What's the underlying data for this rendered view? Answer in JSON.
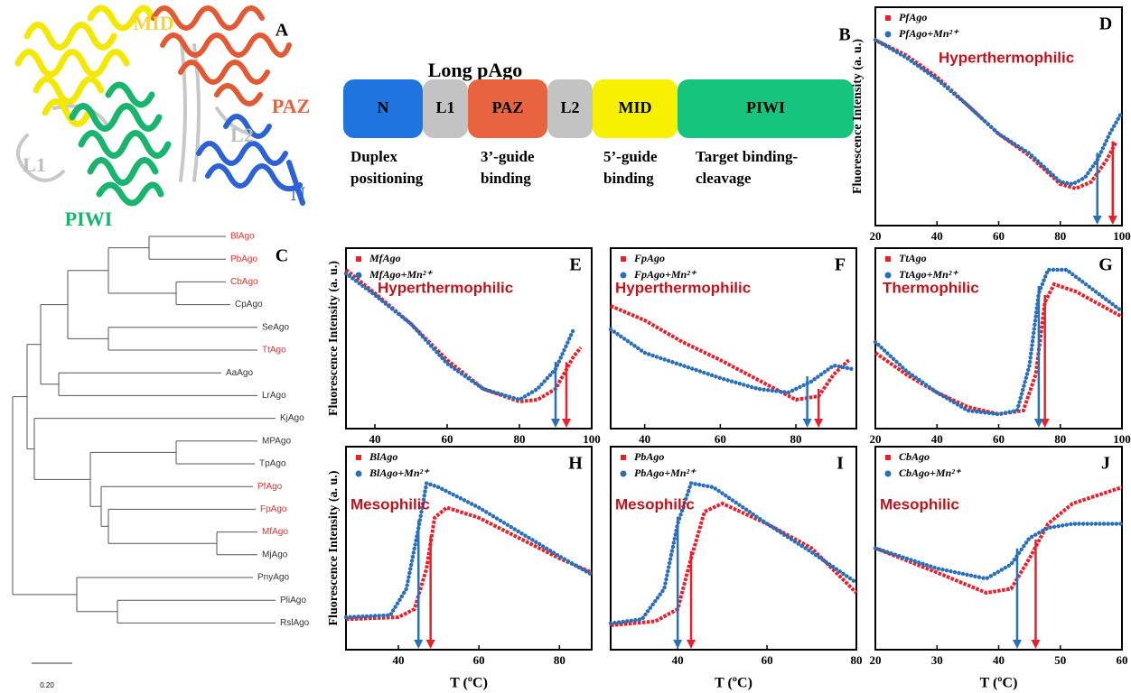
{
  "panel_a": {
    "letter": "A",
    "labels": {
      "mid": "MID",
      "paz": "PAZ",
      "l2": "L2",
      "l1": "L1",
      "n": "N",
      "piwi": "PIWI"
    }
  },
  "panel_b": {
    "letter": "B",
    "title": "Long pAgo",
    "domains": [
      {
        "label": "N",
        "color": "#1f74e0"
      },
      {
        "label": "L1",
        "color": "#c3c3c3"
      },
      {
        "label": "PAZ",
        "color": "#e8643e"
      },
      {
        "label": "L2",
        "color": "#c3c3c3"
      },
      {
        "label": "MID",
        "color": "#f7f000"
      },
      {
        "label": "PIWI",
        "color": "#16c47d"
      }
    ],
    "functions": [
      [
        "Duplex",
        "positioning"
      ],
      [
        "3’-guide",
        "binding"
      ],
      [
        "5’-guide",
        "binding"
      ],
      [
        "Target binding-",
        "cleavage"
      ]
    ]
  },
  "panel_c": {
    "letter": "C",
    "scale": "0.20",
    "leaves": [
      {
        "label": "BlAgo",
        "highlight": true
      },
      {
        "label": "PbAgo",
        "highlight": true
      },
      {
        "label": "CbAgo",
        "highlight": true
      },
      {
        "label": "CpAgo",
        "highlight": false
      },
      {
        "label": "SeAgo",
        "highlight": false
      },
      {
        "label": "TtAgo",
        "highlight": true
      },
      {
        "label": "AaAgo",
        "highlight": false
      },
      {
        "label": "LrAgo",
        "highlight": false
      },
      {
        "label": "KjAgo",
        "highlight": false
      },
      {
        "label": "MPAgo",
        "highlight": false
      },
      {
        "label": "TpAgo",
        "highlight": false
      },
      {
        "label": "PfAgo",
        "highlight": true
      },
      {
        "label": "FpAgo",
        "highlight": true
      },
      {
        "label": "MfAgo",
        "highlight": true
      },
      {
        "label": "MjAgo",
        "highlight": false
      },
      {
        "label": "PnyAgo",
        "highlight": false
      },
      {
        "label": "PliAgo",
        "highlight": false
      },
      {
        "label": "RslAgo",
        "highlight": false
      }
    ]
  },
  "chart_data": [
    {
      "type": "line",
      "letter": "D",
      "annotation": "Hyperthermophilic",
      "ylabel": "Fluorescence Intensity (a. u.)",
      "xlim": [
        20,
        100
      ],
      "xticks": [
        20,
        40,
        60,
        80,
        100
      ],
      "ylim": [
        0,
        1
      ],
      "series": [
        {
          "name": "PfAgo",
          "color": "#e8202a",
          "marker": "square",
          "x": [
            20,
            30,
            40,
            50,
            60,
            70,
            80,
            85,
            90,
            95,
            98
          ],
          "values": [
            0.85,
            0.78,
            0.68,
            0.55,
            0.42,
            0.32,
            0.19,
            0.17,
            0.2,
            0.3,
            0.38
          ],
          "tm": 97
        },
        {
          "name": "PfAgo+Mn²⁺",
          "color": "#2a70b8",
          "marker": "circle",
          "x": [
            20,
            30,
            40,
            50,
            60,
            70,
            80,
            84,
            88,
            92,
            96,
            100
          ],
          "values": [
            0.85,
            0.77,
            0.67,
            0.55,
            0.42,
            0.33,
            0.2,
            0.19,
            0.22,
            0.3,
            0.42,
            0.52
          ],
          "tm": 92
        }
      ]
    },
    {
      "type": "line",
      "letter": "E",
      "annotation": "Hyperthermophilic",
      "ylabel": "Fluorescence Intensity (a. u.)",
      "xlim": [
        32,
        100
      ],
      "xticks": [
        40,
        60,
        80,
        100
      ],
      "ylim": [
        0,
        1
      ],
      "series": [
        {
          "name": "MfAgo",
          "color": "#e8202a",
          "marker": "square",
          "x": [
            32,
            40,
            50,
            60,
            70,
            80,
            85,
            90,
            95,
            97
          ],
          "values": [
            0.88,
            0.75,
            0.58,
            0.38,
            0.22,
            0.15,
            0.16,
            0.22,
            0.4,
            0.45
          ],
          "tm": 93
        },
        {
          "name": "MfAgo+Mn²⁺",
          "color": "#2a70b8",
          "marker": "circle",
          "x": [
            32,
            40,
            50,
            60,
            70,
            80,
            85,
            90,
            95
          ],
          "values": [
            0.86,
            0.74,
            0.58,
            0.36,
            0.22,
            0.16,
            0.22,
            0.33,
            0.55
          ],
          "tm": 90
        }
      ]
    },
    {
      "type": "line",
      "letter": "F",
      "annotation": "Hyperthermophilic",
      "xlim": [
        31,
        96
      ],
      "xticks": [
        40,
        60,
        80
      ],
      "ylim": [
        0,
        1
      ],
      "series": [
        {
          "name": "FpAgo",
          "color": "#e8202a",
          "marker": "square",
          "x": [
            31,
            40,
            50,
            60,
            70,
            80,
            86,
            90,
            94
          ],
          "values": [
            0.68,
            0.6,
            0.48,
            0.38,
            0.27,
            0.16,
            0.18,
            0.3,
            0.38
          ],
          "tm": 86
        },
        {
          "name": "FpAgo+Mn²⁺",
          "color": "#2a70b8",
          "marker": "circle",
          "x": [
            31,
            40,
            50,
            60,
            70,
            78,
            84,
            90,
            95
          ],
          "values": [
            0.55,
            0.42,
            0.35,
            0.28,
            0.22,
            0.2,
            0.26,
            0.35,
            0.33
          ],
          "tm": 83
        }
      ]
    },
    {
      "type": "line",
      "letter": "G",
      "annotation": "Thermophilic",
      "xlim": [
        20,
        100
      ],
      "xticks": [
        20,
        40,
        60,
        80,
        100
      ],
      "ylim": [
        0,
        1
      ],
      "series": [
        {
          "name": "TtAgo",
          "color": "#e8202a",
          "marker": "square",
          "x": [
            20,
            30,
            40,
            50,
            60,
            68,
            72,
            75,
            78,
            85,
            100
          ],
          "values": [
            0.42,
            0.3,
            0.2,
            0.12,
            0.08,
            0.1,
            0.3,
            0.7,
            0.8,
            0.76,
            0.62
          ],
          "tm": 75
        },
        {
          "name": "TtAgo+Mn²⁺",
          "color": "#2a70b8",
          "marker": "circle",
          "x": [
            20,
            30,
            40,
            50,
            60,
            66,
            70,
            73,
            76,
            82,
            100
          ],
          "values": [
            0.48,
            0.32,
            0.2,
            0.1,
            0.08,
            0.1,
            0.35,
            0.75,
            0.88,
            0.88,
            0.65
          ],
          "tm": 73
        }
      ]
    },
    {
      "type": "line",
      "letter": "H",
      "annotation": "Mesophilic",
      "ylabel": "Fluorescence Intensity (a. u.)",
      "xlabel": "T (ºC)",
      "xlim": [
        27,
        88
      ],
      "xticks": [
        40,
        60,
        80
      ],
      "ylim": [
        0,
        1
      ],
      "series": [
        {
          "name": "BlAgo",
          "color": "#e8202a",
          "marker": "square",
          "x": [
            27,
            40,
            44,
            47,
            49,
            52,
            60,
            70,
            80,
            88
          ],
          "values": [
            0.15,
            0.16,
            0.2,
            0.4,
            0.65,
            0.7,
            0.65,
            0.55,
            0.45,
            0.38
          ],
          "tm": 48
        },
        {
          "name": "BlAgo+Mn²⁺",
          "color": "#2a70b8",
          "marker": "circle",
          "x": [
            27,
            38,
            42,
            45,
            47,
            50,
            60,
            70,
            80,
            88
          ],
          "values": [
            0.16,
            0.17,
            0.3,
            0.6,
            0.82,
            0.8,
            0.7,
            0.58,
            0.46,
            0.37
          ],
          "tm": 45
        }
      ]
    },
    {
      "type": "line",
      "letter": "I",
      "annotation": "Mesophilic",
      "xlabel": "T (ºC)",
      "xlim": [
        25,
        80
      ],
      "xticks": [
        40,
        60,
        80
      ],
      "ylim": [
        0,
        1
      ],
      "series": [
        {
          "name": "PbAgo",
          "color": "#e8202a",
          "marker": "square",
          "x": [
            25,
            35,
            40,
            43,
            46,
            50,
            60,
            70,
            80
          ],
          "values": [
            0.12,
            0.14,
            0.2,
            0.45,
            0.68,
            0.72,
            0.62,
            0.5,
            0.28
          ],
          "tm": 43
        },
        {
          "name": "PbAgo+Mn²⁺",
          "color": "#2a70b8",
          "marker": "circle",
          "x": [
            25,
            32,
            37,
            40,
            43,
            48,
            60,
            70,
            80
          ],
          "values": [
            0.13,
            0.15,
            0.3,
            0.62,
            0.82,
            0.8,
            0.62,
            0.48,
            0.33
          ],
          "tm": 40
        }
      ]
    },
    {
      "type": "line",
      "letter": "J",
      "annotation": "Mesophilic",
      "xlabel": "T (ºC)",
      "xlim": [
        20,
        60
      ],
      "xticks": [
        20,
        30,
        40,
        50,
        60
      ],
      "ylim": [
        0,
        1
      ],
      "series": [
        {
          "name": "CbAgo",
          "color": "#e8202a",
          "marker": "square",
          "x": [
            20,
            30,
            38,
            42,
            45,
            48,
            52,
            60
          ],
          "values": [
            0.5,
            0.38,
            0.28,
            0.3,
            0.45,
            0.62,
            0.72,
            0.8
          ],
          "tm": 46
        },
        {
          "name": "CbAgo+Mn²⁺",
          "color": "#2a70b8",
          "marker": "circle",
          "x": [
            20,
            30,
            38,
            42,
            45,
            48,
            52,
            60
          ],
          "values": [
            0.5,
            0.4,
            0.35,
            0.42,
            0.55,
            0.6,
            0.62,
            0.62
          ],
          "tm": 43
        }
      ]
    }
  ]
}
